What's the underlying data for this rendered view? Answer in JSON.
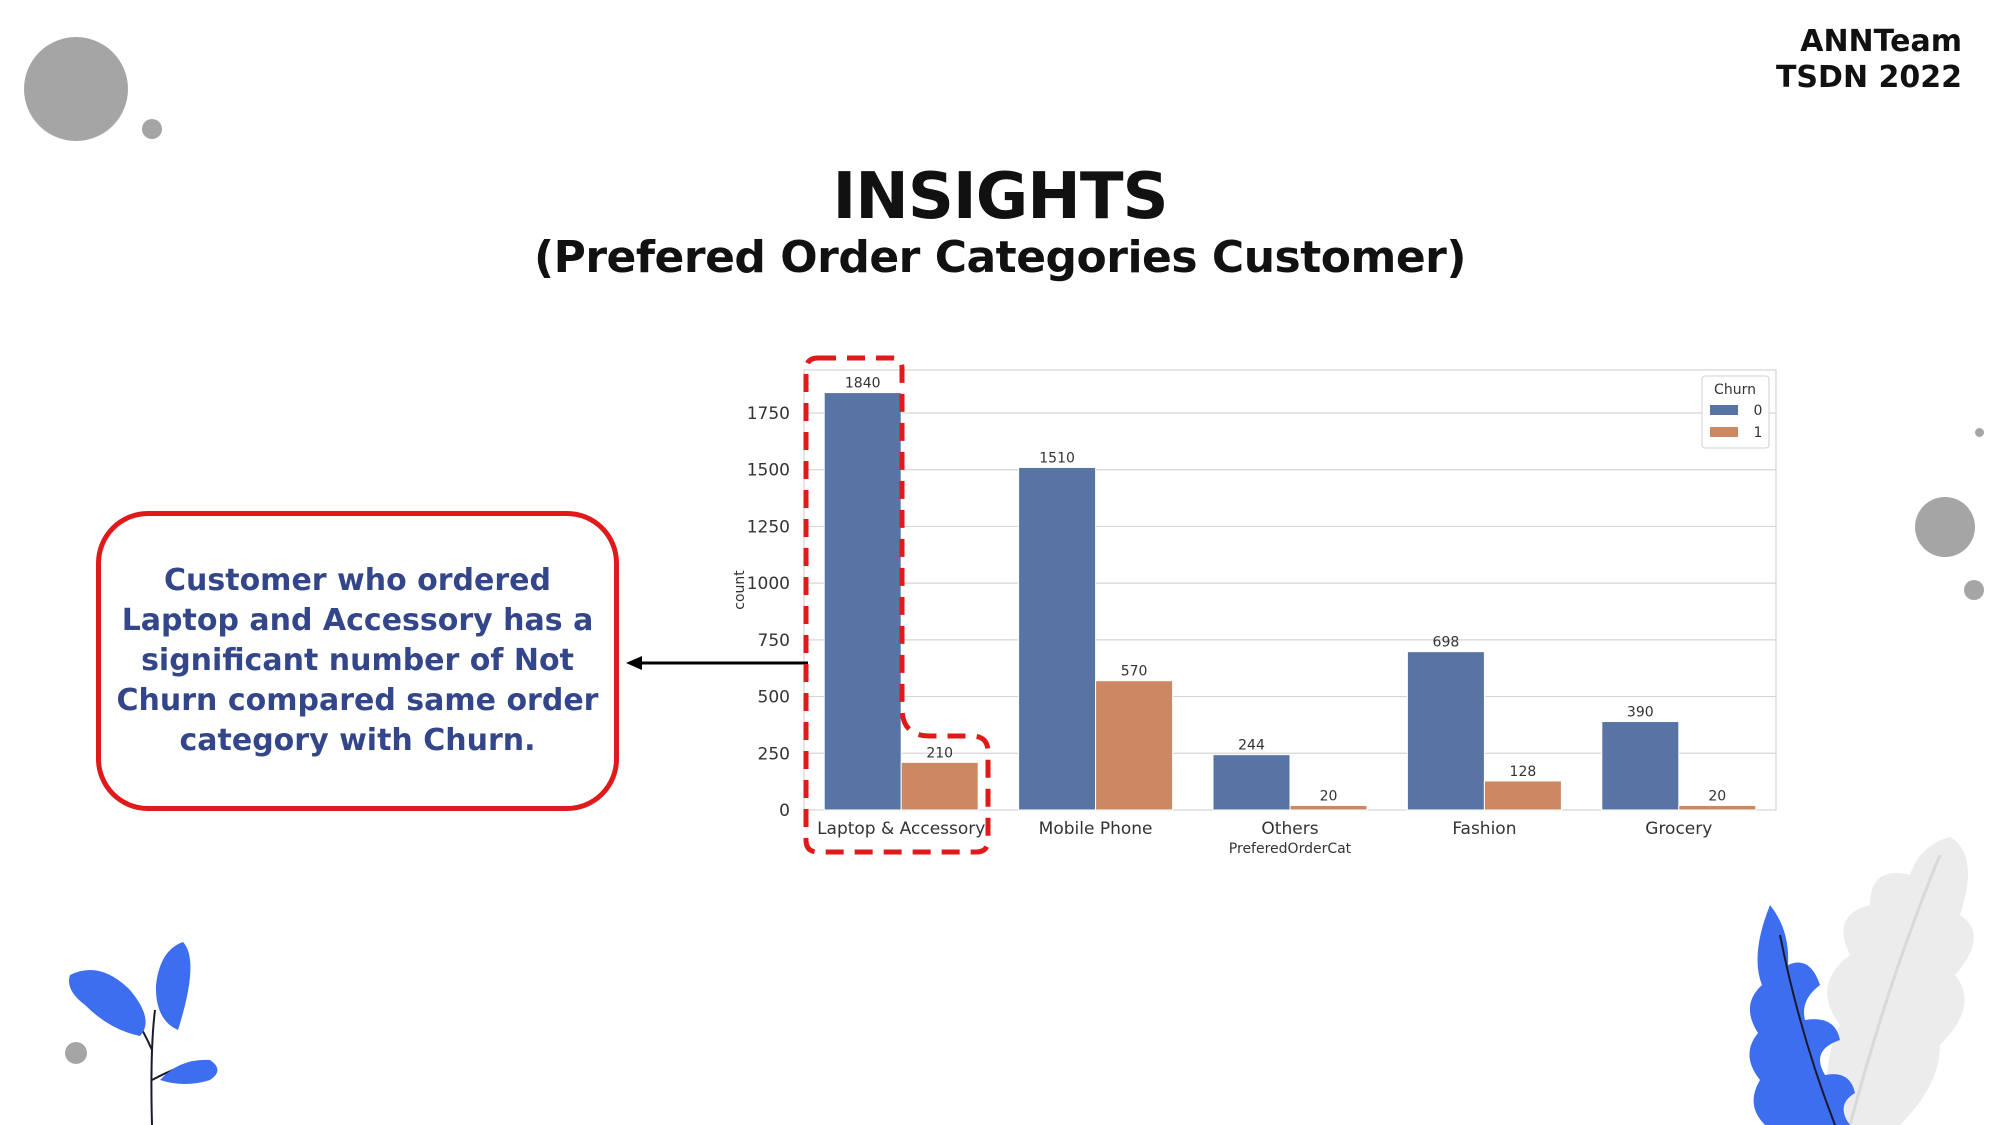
{
  "header": {
    "brand_line1": "ANNTeam",
    "brand_line2": "TSDN 2022",
    "title": "INSIGHTS",
    "subtitle": "(Prefered Order Categories Customer)"
  },
  "callout": {
    "text": "Customer who ordered Laptop and Accessory has a significant number of Not Churn compared same order category with Churn."
  },
  "colors": {
    "churn_0": "#5874a5",
    "churn_1": "#cc8862",
    "highlight": "#e01a1a",
    "callout_text": "#34468a"
  },
  "chart_data": {
    "type": "bar",
    "xlabel": "PreferedOrderCat",
    "ylabel": "count",
    "categories": [
      "Laptop & Accessory",
      "Mobile Phone",
      "Others",
      "Fashion",
      "Grocery"
    ],
    "series": [
      {
        "name": "0",
        "values": [
          1840,
          1510,
          244,
          698,
          390
        ]
      },
      {
        "name": "1",
        "values": [
          210,
          570,
          20,
          128,
          20
        ]
      }
    ],
    "value_labels": [
      [
        "1840",
        "1510",
        "244",
        "698",
        "390"
      ],
      [
        "210",
        "570",
        "20",
        "128",
        "20"
      ]
    ],
    "ylim": [
      0,
      1950
    ],
    "yticks": [
      0,
      250,
      500,
      750,
      1000,
      1250,
      1500,
      1750
    ],
    "legend": {
      "title": "Churn",
      "position": "top-right"
    },
    "grid": true
  }
}
